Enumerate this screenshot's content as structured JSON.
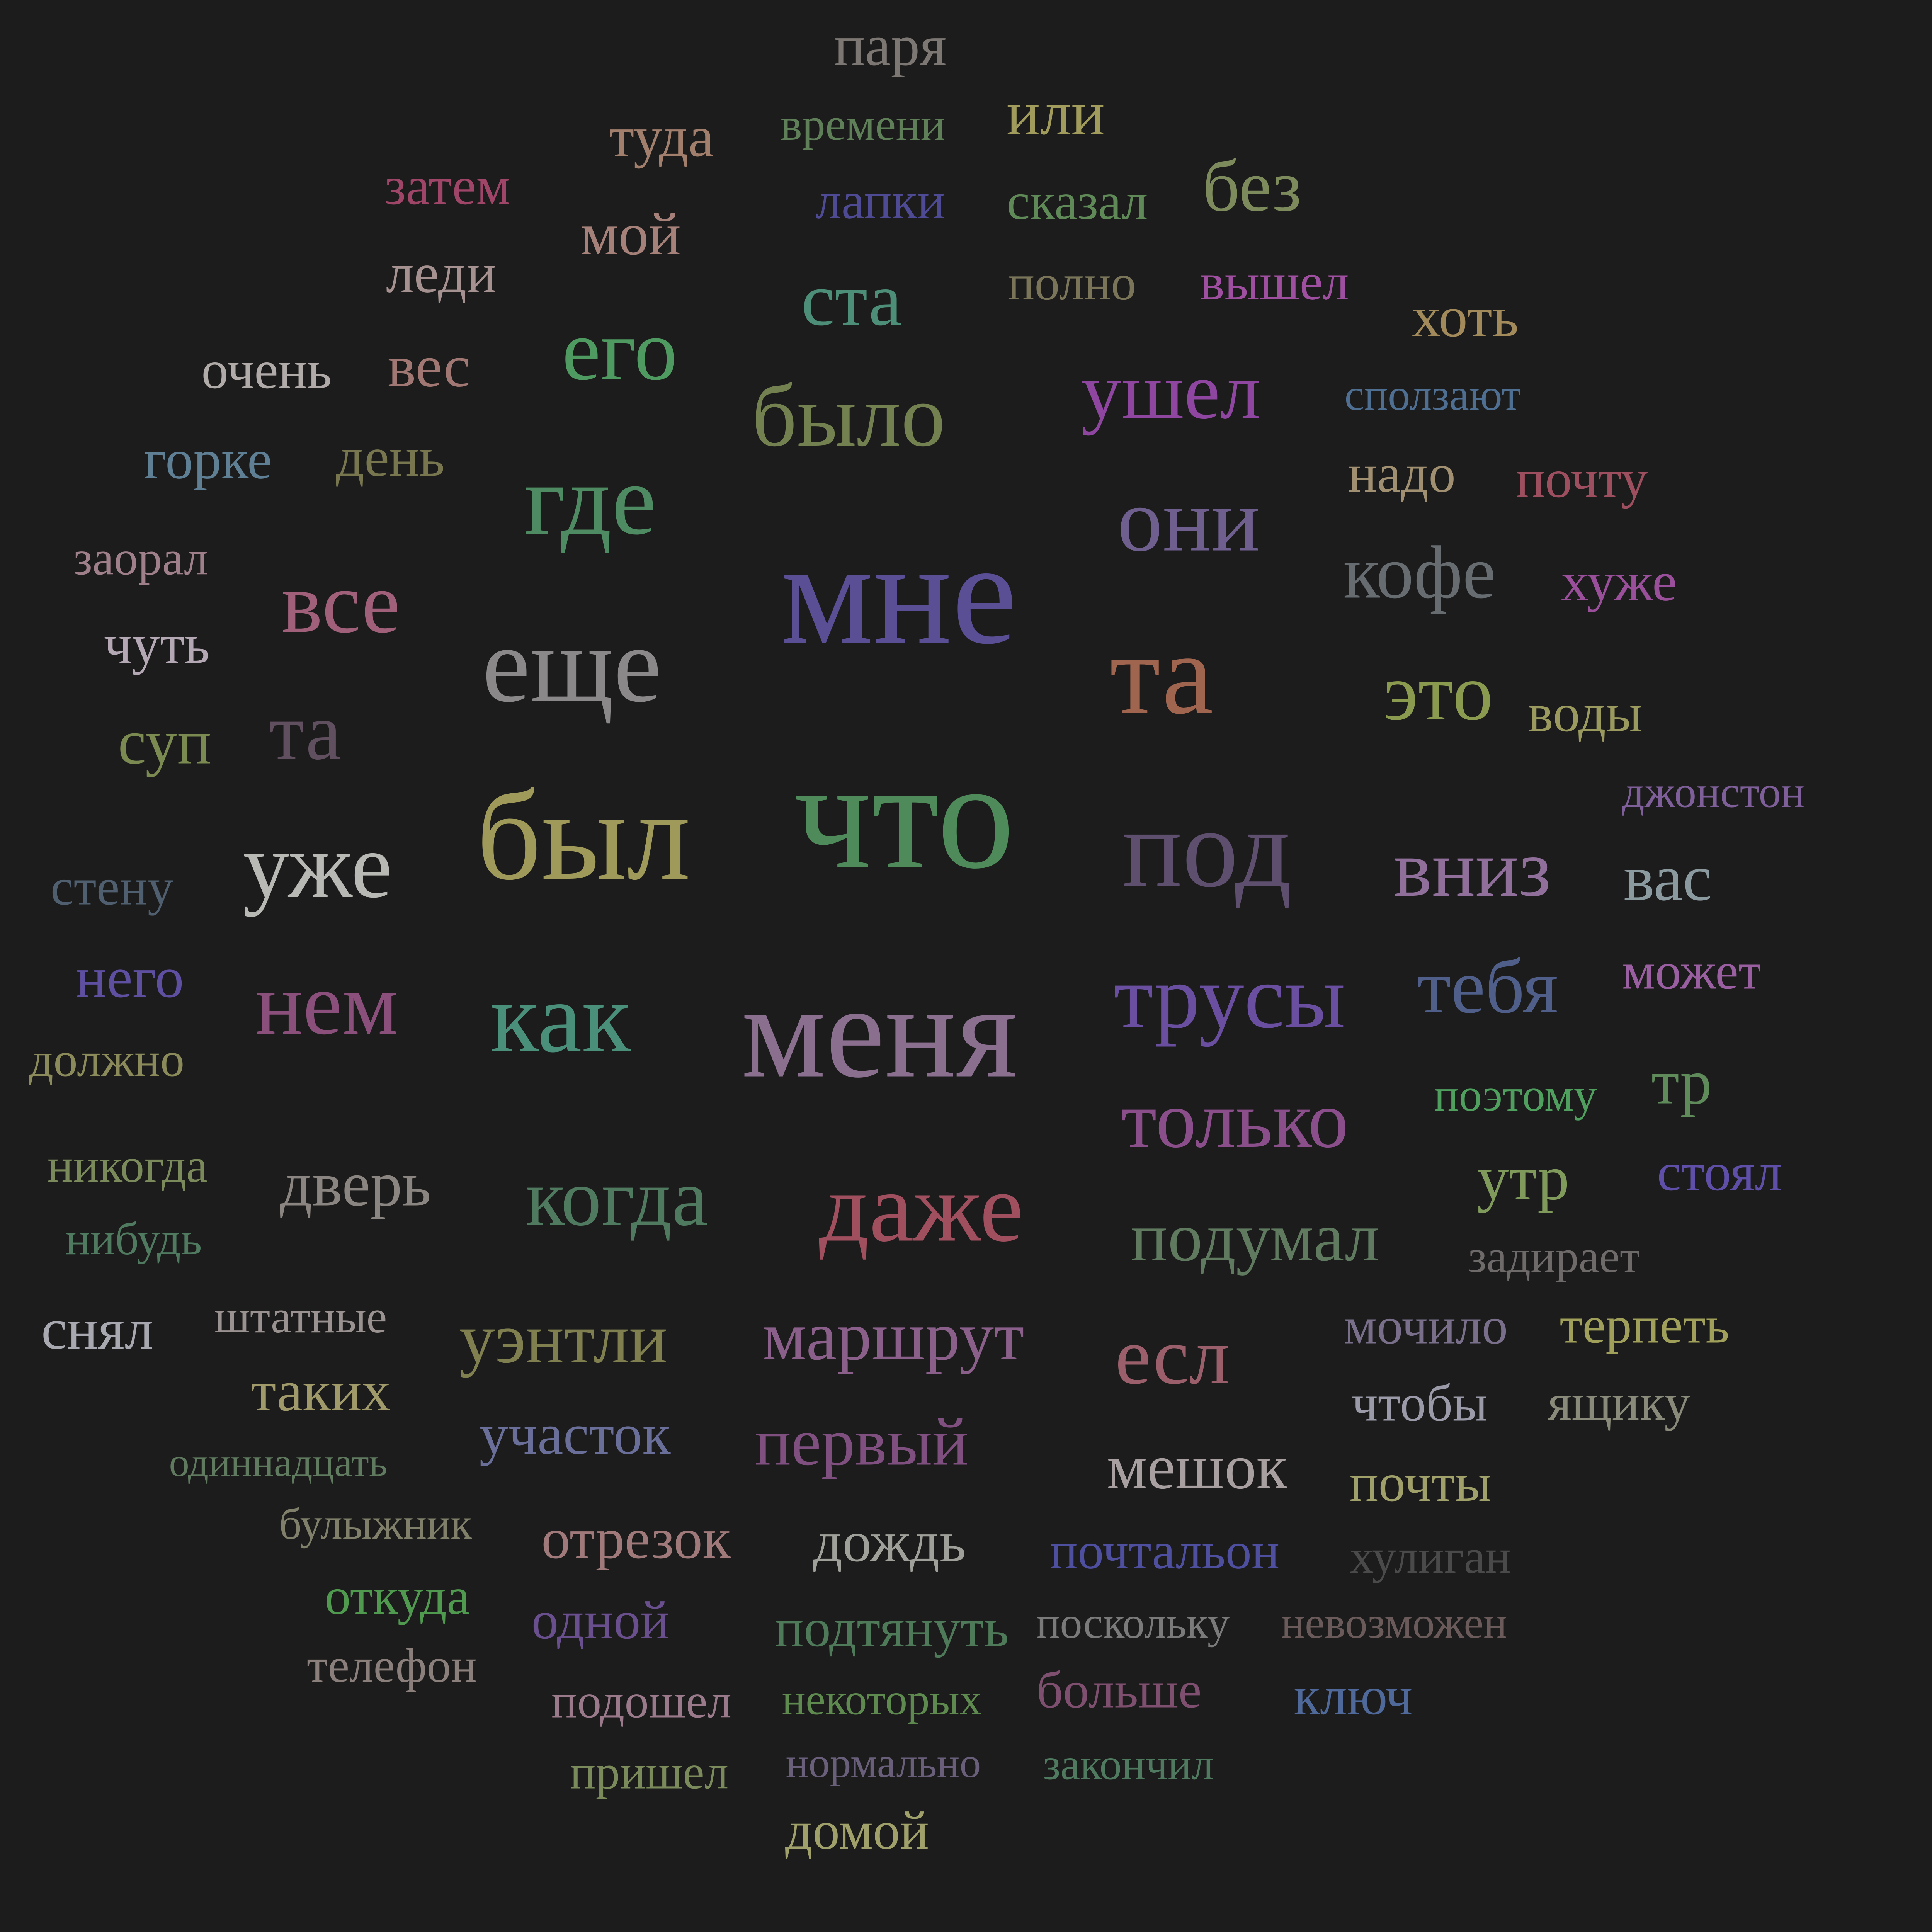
{
  "background": "#1c1c1c",
  "words": [
    {
      "text": "паря",
      "color": "#7d7773"
    },
    {
      "text": "туда",
      "color": "#a27f6c"
    },
    {
      "text": "времени",
      "color": "#5e7f58"
    },
    {
      "text": "или",
      "color": "#a19c5c"
    },
    {
      "text": "затем",
      "color": "#9e4568"
    },
    {
      "text": "мой",
      "color": "#a58179"
    },
    {
      "text": "лапки",
      "color": "#4e4a93"
    },
    {
      "text": "сказал",
      "color": "#5f8a58"
    },
    {
      "text": "без",
      "color": "#7d8a5c"
    },
    {
      "text": "леди",
      "color": "#a59290"
    },
    {
      "text": "ста",
      "color": "#4d8e78"
    },
    {
      "text": "полно",
      "color": "#7a7558"
    },
    {
      "text": "вышел",
      "color": "#9f4f9f"
    },
    {
      "text": "хоть",
      "color": "#a28a5a"
    },
    {
      "text": "очень",
      "color": "#b0aaa8"
    },
    {
      "text": "вес",
      "color": "#a07772"
    },
    {
      "text": "его",
      "color": "#4f9a60"
    },
    {
      "text": "было",
      "color": "#73804f"
    },
    {
      "text": "ушел",
      "color": "#8e46a0"
    },
    {
      "text": "сползают",
      "color": "#4f6f92"
    },
    {
      "text": "горке",
      "color": "#5f7f95"
    },
    {
      "text": "день",
      "color": "#77764f"
    },
    {
      "text": "где",
      "color": "#4e8a62"
    },
    {
      "text": "надо",
      "color": "#a08f70"
    },
    {
      "text": "почту",
      "color": "#9e4f5f"
    },
    {
      "text": "они",
      "color": "#6f5f8f"
    },
    {
      "text": "заорал",
      "color": "#9f7f8a"
    },
    {
      "text": "мне",
      "color": "#5a4f94"
    },
    {
      "text": "кофе",
      "color": "#666c70"
    },
    {
      "text": "хуже",
      "color": "#9a4f9a"
    },
    {
      "text": "все",
      "color": "#a0607a"
    },
    {
      "text": "чуть",
      "color": "#b4a8b4"
    },
    {
      "text": "еще",
      "color": "#8a8888"
    },
    {
      "text": "та",
      "color": "#a0654f"
    },
    {
      "text": "это",
      "color": "#8a9a4f"
    },
    {
      "text": "воды",
      "color": "#9a9a5f"
    },
    {
      "text": "суп",
      "color": "#7a8a50"
    },
    {
      "text": "та",
      "color": "#5f4f5f"
    },
    {
      "text": "джонстон",
      "color": "#7f5f9a"
    },
    {
      "text": "был",
      "color": "#a09a5a"
    },
    {
      "text": "что",
      "color": "#4f8a5a"
    },
    {
      "text": "под",
      "color": "#5f4f6f"
    },
    {
      "text": "вниз",
      "color": "#906f9a"
    },
    {
      "text": "вас",
      "color": "#8a9a9f"
    },
    {
      "text": "уже",
      "color": "#b8b8b4"
    },
    {
      "text": "стену",
      "color": "#4f5f6f"
    },
    {
      "text": "него",
      "color": "#5f4fa0"
    },
    {
      "text": "нем",
      "color": "#8a4f7a"
    },
    {
      "text": "как",
      "color": "#4a8f7a"
    },
    {
      "text": "меня",
      "color": "#8a6f8f"
    },
    {
      "text": "трусы",
      "color": "#6a4fa0"
    },
    {
      "text": "тебя",
      "color": "#4f5f8a"
    },
    {
      "text": "может",
      "color": "#9a5fa0"
    },
    {
      "text": "должно",
      "color": "#8a8a5a"
    },
    {
      "text": "только",
      "color": "#8a4f8a"
    },
    {
      "text": "поэтому",
      "color": "#4f9f5f"
    },
    {
      "text": "тр",
      "color": "#5f8a5a"
    },
    {
      "text": "никогда",
      "color": "#7a8a5a"
    },
    {
      "text": "дверь",
      "color": "#8a8580"
    },
    {
      "text": "когда",
      "color": "#4f7a5f"
    },
    {
      "text": "даже",
      "color": "#a04f5f"
    },
    {
      "text": "утр",
      "color": "#7f9a5a"
    },
    {
      "text": "стоял",
      "color": "#5f4fa8"
    },
    {
      "text": "нибудь",
      "color": "#4f7a60"
    },
    {
      "text": "подумал",
      "color": "#5f7a5f"
    },
    {
      "text": "задирает",
      "color": "#6f6a6a"
    },
    {
      "text": "снял",
      "color": "#a8a8b0"
    },
    {
      "text": "штатные",
      "color": "#9a9290"
    },
    {
      "text": "уэнтли",
      "color": "#7f7f4f"
    },
    {
      "text": "маршрут",
      "color": "#8a5f8a"
    },
    {
      "text": "есл",
      "color": "#9a5f6a"
    },
    {
      "text": "мочило",
      "color": "#7a6f8a"
    },
    {
      "text": "терпеть",
      "color": "#a0a05a"
    },
    {
      "text": "таких",
      "color": "#a09a6a"
    },
    {
      "text": "участок",
      "color": "#6a6f9a"
    },
    {
      "text": "первый",
      "color": "#7f4f7f"
    },
    {
      "text": "мешок",
      "color": "#a8a0a0"
    },
    {
      "text": "чтобы",
      "color": "#9a9aa8"
    },
    {
      "text": "ящику",
      "color": "#8a8a7a"
    },
    {
      "text": "одиннадцать",
      "color": "#5f7a5f"
    },
    {
      "text": "почты",
      "color": "#a0a06a"
    },
    {
      "text": "булыжник",
      "color": "#7f7f6a"
    },
    {
      "text": "отрезок",
      "color": "#a07a7a"
    },
    {
      "text": "дождь",
      "color": "#a0a09a"
    },
    {
      "text": "почтальон",
      "color": "#4f4fa0"
    },
    {
      "text": "хулиган",
      "color": "#4a4a4a"
    },
    {
      "text": "откуда",
      "color": "#4f9a4f"
    },
    {
      "text": "одной",
      "color": "#6a4f8f"
    },
    {
      "text": "подтянуть",
      "color": "#4f7a5a"
    },
    {
      "text": "поскольку",
      "color": "#7a7a7a"
    },
    {
      "text": "невозможен",
      "color": "#6a5a5a"
    },
    {
      "text": "телефон",
      "color": "#8a7f7a"
    },
    {
      "text": "подошел",
      "color": "#9a7a8a"
    },
    {
      "text": "некоторых",
      "color": "#5f8a4f"
    },
    {
      "text": "больше",
      "color": "#7f4f6f"
    },
    {
      "text": "ключ",
      "color": "#4f6a9a"
    },
    {
      "text": "пришел",
      "color": "#7a8a5a"
    },
    {
      "text": "нормально",
      "color": "#6a5f7a"
    },
    {
      "text": "закончил",
      "color": "#4f7a60"
    },
    {
      "text": "домой",
      "color": "#a0a06a"
    }
  ]
}
